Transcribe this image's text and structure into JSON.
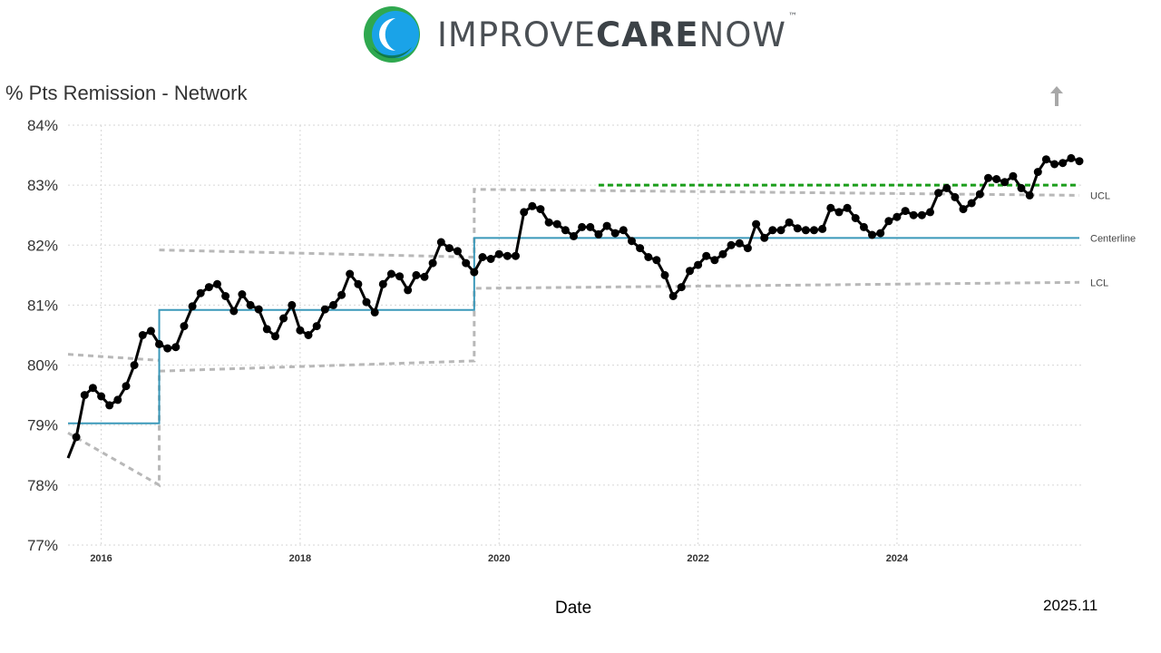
{
  "header": {
    "brand_prefix": "IMPROVE",
    "brand_bold": "CARE",
    "brand_suffix": "NOW",
    "trademark": "™",
    "logo_colors": [
      "#2fa84f",
      "#1aa3e8",
      "#0a6e3c"
    ]
  },
  "toolbar": {
    "export_icon": "up-arrow-icon"
  },
  "footer": {
    "date_stamp": "2025.11"
  },
  "chart_data": {
    "type": "line",
    "title": "% Pts Remission - Network",
    "xlabel": "Date",
    "ylabel": "",
    "ylim": [
      77,
      84
    ],
    "yticks": [
      "77%",
      "78%",
      "79%",
      "80%",
      "81%",
      "82%",
      "83%",
      "84%"
    ],
    "xlim": [
      "2015-09",
      "2025-11"
    ],
    "xticks": [
      "2016",
      "2018",
      "2020",
      "2022",
      "2024"
    ],
    "grid": true,
    "series": [
      {
        "name": "",
        "color": "#000000",
        "x": [
          "2015-09",
          "2015-10",
          "2015-11",
          "2015-12",
          "2016-01",
          "2016-02",
          "2016-03",
          "2016-04",
          "2016-05",
          "2016-06",
          "2016-07",
          "2016-08",
          "2016-09",
          "2016-10",
          "2016-11",
          "2016-12",
          "2017-01",
          "2017-02",
          "2017-03",
          "2017-04",
          "2017-05",
          "2017-06",
          "2017-07",
          "2017-08",
          "2017-09",
          "2017-10",
          "2017-11",
          "2017-12",
          "2018-01",
          "2018-02",
          "2018-03",
          "2018-04",
          "2018-05",
          "2018-06",
          "2018-07",
          "2018-08",
          "2018-09",
          "2018-10",
          "2018-11",
          "2018-12",
          "2019-01",
          "2019-02",
          "2019-03",
          "2019-04",
          "2019-05",
          "2019-06",
          "2019-07",
          "2019-08",
          "2019-09",
          "2019-10",
          "2019-11",
          "2019-12",
          "2020-01",
          "2020-02",
          "2020-03",
          "2020-04",
          "2020-05",
          "2020-06",
          "2020-07",
          "2020-08",
          "2020-09",
          "2020-10",
          "2020-11",
          "2020-12",
          "2021-01",
          "2021-02",
          "2021-03",
          "2021-04",
          "2021-05",
          "2021-06",
          "2021-07",
          "2021-08",
          "2021-09",
          "2021-10",
          "2021-11",
          "2021-12",
          "2022-01",
          "2022-02",
          "2022-03",
          "2022-04",
          "2022-05",
          "2022-06",
          "2022-07",
          "2022-08",
          "2022-09",
          "2022-10",
          "2022-11",
          "2022-12",
          "2023-01",
          "2023-02",
          "2023-03",
          "2023-04",
          "2023-05",
          "2023-06",
          "2023-07",
          "2023-08",
          "2023-09",
          "2023-10",
          "2023-11",
          "2023-12",
          "2024-01",
          "2024-02",
          "2024-03",
          "2024-04",
          "2024-05",
          "2024-06",
          "2024-07",
          "2024-08",
          "2024-09",
          "2024-10",
          "2024-11",
          "2024-12",
          "2025-01",
          "2025-02",
          "2025-03",
          "2025-04",
          "2025-05",
          "2025-06",
          "2025-07",
          "2025-08",
          "2025-09",
          "2025-10",
          "2025-11"
        ],
        "values": [
          78.45,
          78.8,
          79.5,
          79.62,
          79.48,
          79.33,
          79.42,
          79.65,
          80.0,
          80.5,
          80.57,
          80.35,
          80.28,
          80.3,
          80.65,
          80.98,
          81.2,
          81.3,
          81.35,
          81.15,
          80.9,
          81.18,
          81.0,
          80.93,
          80.6,
          80.48,
          80.78,
          81.0,
          80.58,
          80.5,
          80.65,
          80.93,
          81.0,
          81.17,
          81.52,
          81.35,
          81.05,
          80.88,
          81.35,
          81.52,
          81.48,
          81.25,
          81.5,
          81.47,
          81.7,
          82.05,
          81.95,
          81.9,
          81.7,
          81.55,
          81.8,
          81.77,
          81.85,
          81.82,
          81.82,
          82.55,
          82.65,
          82.6,
          82.38,
          82.35,
          82.25,
          82.15,
          82.3,
          82.3,
          82.18,
          82.32,
          82.2,
          82.25,
          82.07,
          81.95,
          81.8,
          81.75,
          81.5,
          81.15,
          81.3,
          81.57,
          81.67,
          81.82,
          81.75,
          81.85,
          82.0,
          82.03,
          81.95,
          82.35,
          82.12,
          82.25,
          82.25,
          82.38,
          82.28,
          82.25,
          82.25,
          82.27,
          82.62,
          82.55,
          82.62,
          82.45,
          82.3,
          82.17,
          82.2,
          82.4,
          82.47,
          82.57,
          82.5,
          82.5,
          82.55,
          82.87,
          82.95,
          82.8,
          82.6,
          82.7,
          82.85,
          83.12,
          83.1,
          83.05,
          83.15,
          82.95,
          82.83,
          83.22,
          83.43,
          83.35,
          83.37,
          83.45,
          83.4
        ]
      },
      {
        "name": "Centerline",
        "color": "#3a98b9",
        "steps": [
          {
            "from": "2015-09",
            "to": "2016-08",
            "value": 79.03
          },
          {
            "from": "2016-08",
            "to": "2019-10",
            "value": 80.92
          },
          {
            "from": "2019-10",
            "to": "2025-11",
            "value": 82.12
          }
        ]
      },
      {
        "name": "UCL",
        "color": "#b8b8b8",
        "steps": [
          {
            "from": "2016-08",
            "to": "2019-10",
            "start": 81.92,
            "end": 81.8
          },
          {
            "from": "2019-10",
            "to": "2025-11",
            "start": 82.93,
            "end": 82.83
          }
        ]
      },
      {
        "name": "LCL",
        "color": "#b8b8b8",
        "steps": [
          {
            "from": "2015-09",
            "to": "2016-08",
            "start": 78.87,
            "end": 78.0
          },
          {
            "from": "2016-08",
            "to": "2019-10",
            "start": 79.9,
            "end": 80.07
          },
          {
            "from": "2019-10",
            "to": "2025-11",
            "start": 81.28,
            "end": 81.38
          }
        ]
      },
      {
        "name": "",
        "color": "#1a9e1a",
        "from": "2021-01",
        "to": "2025-11",
        "value": 83.0
      }
    ],
    "upper_early_limit": {
      "from": "2015-09",
      "to": "2016-08",
      "start": 80.18,
      "end": 80.08
    }
  }
}
